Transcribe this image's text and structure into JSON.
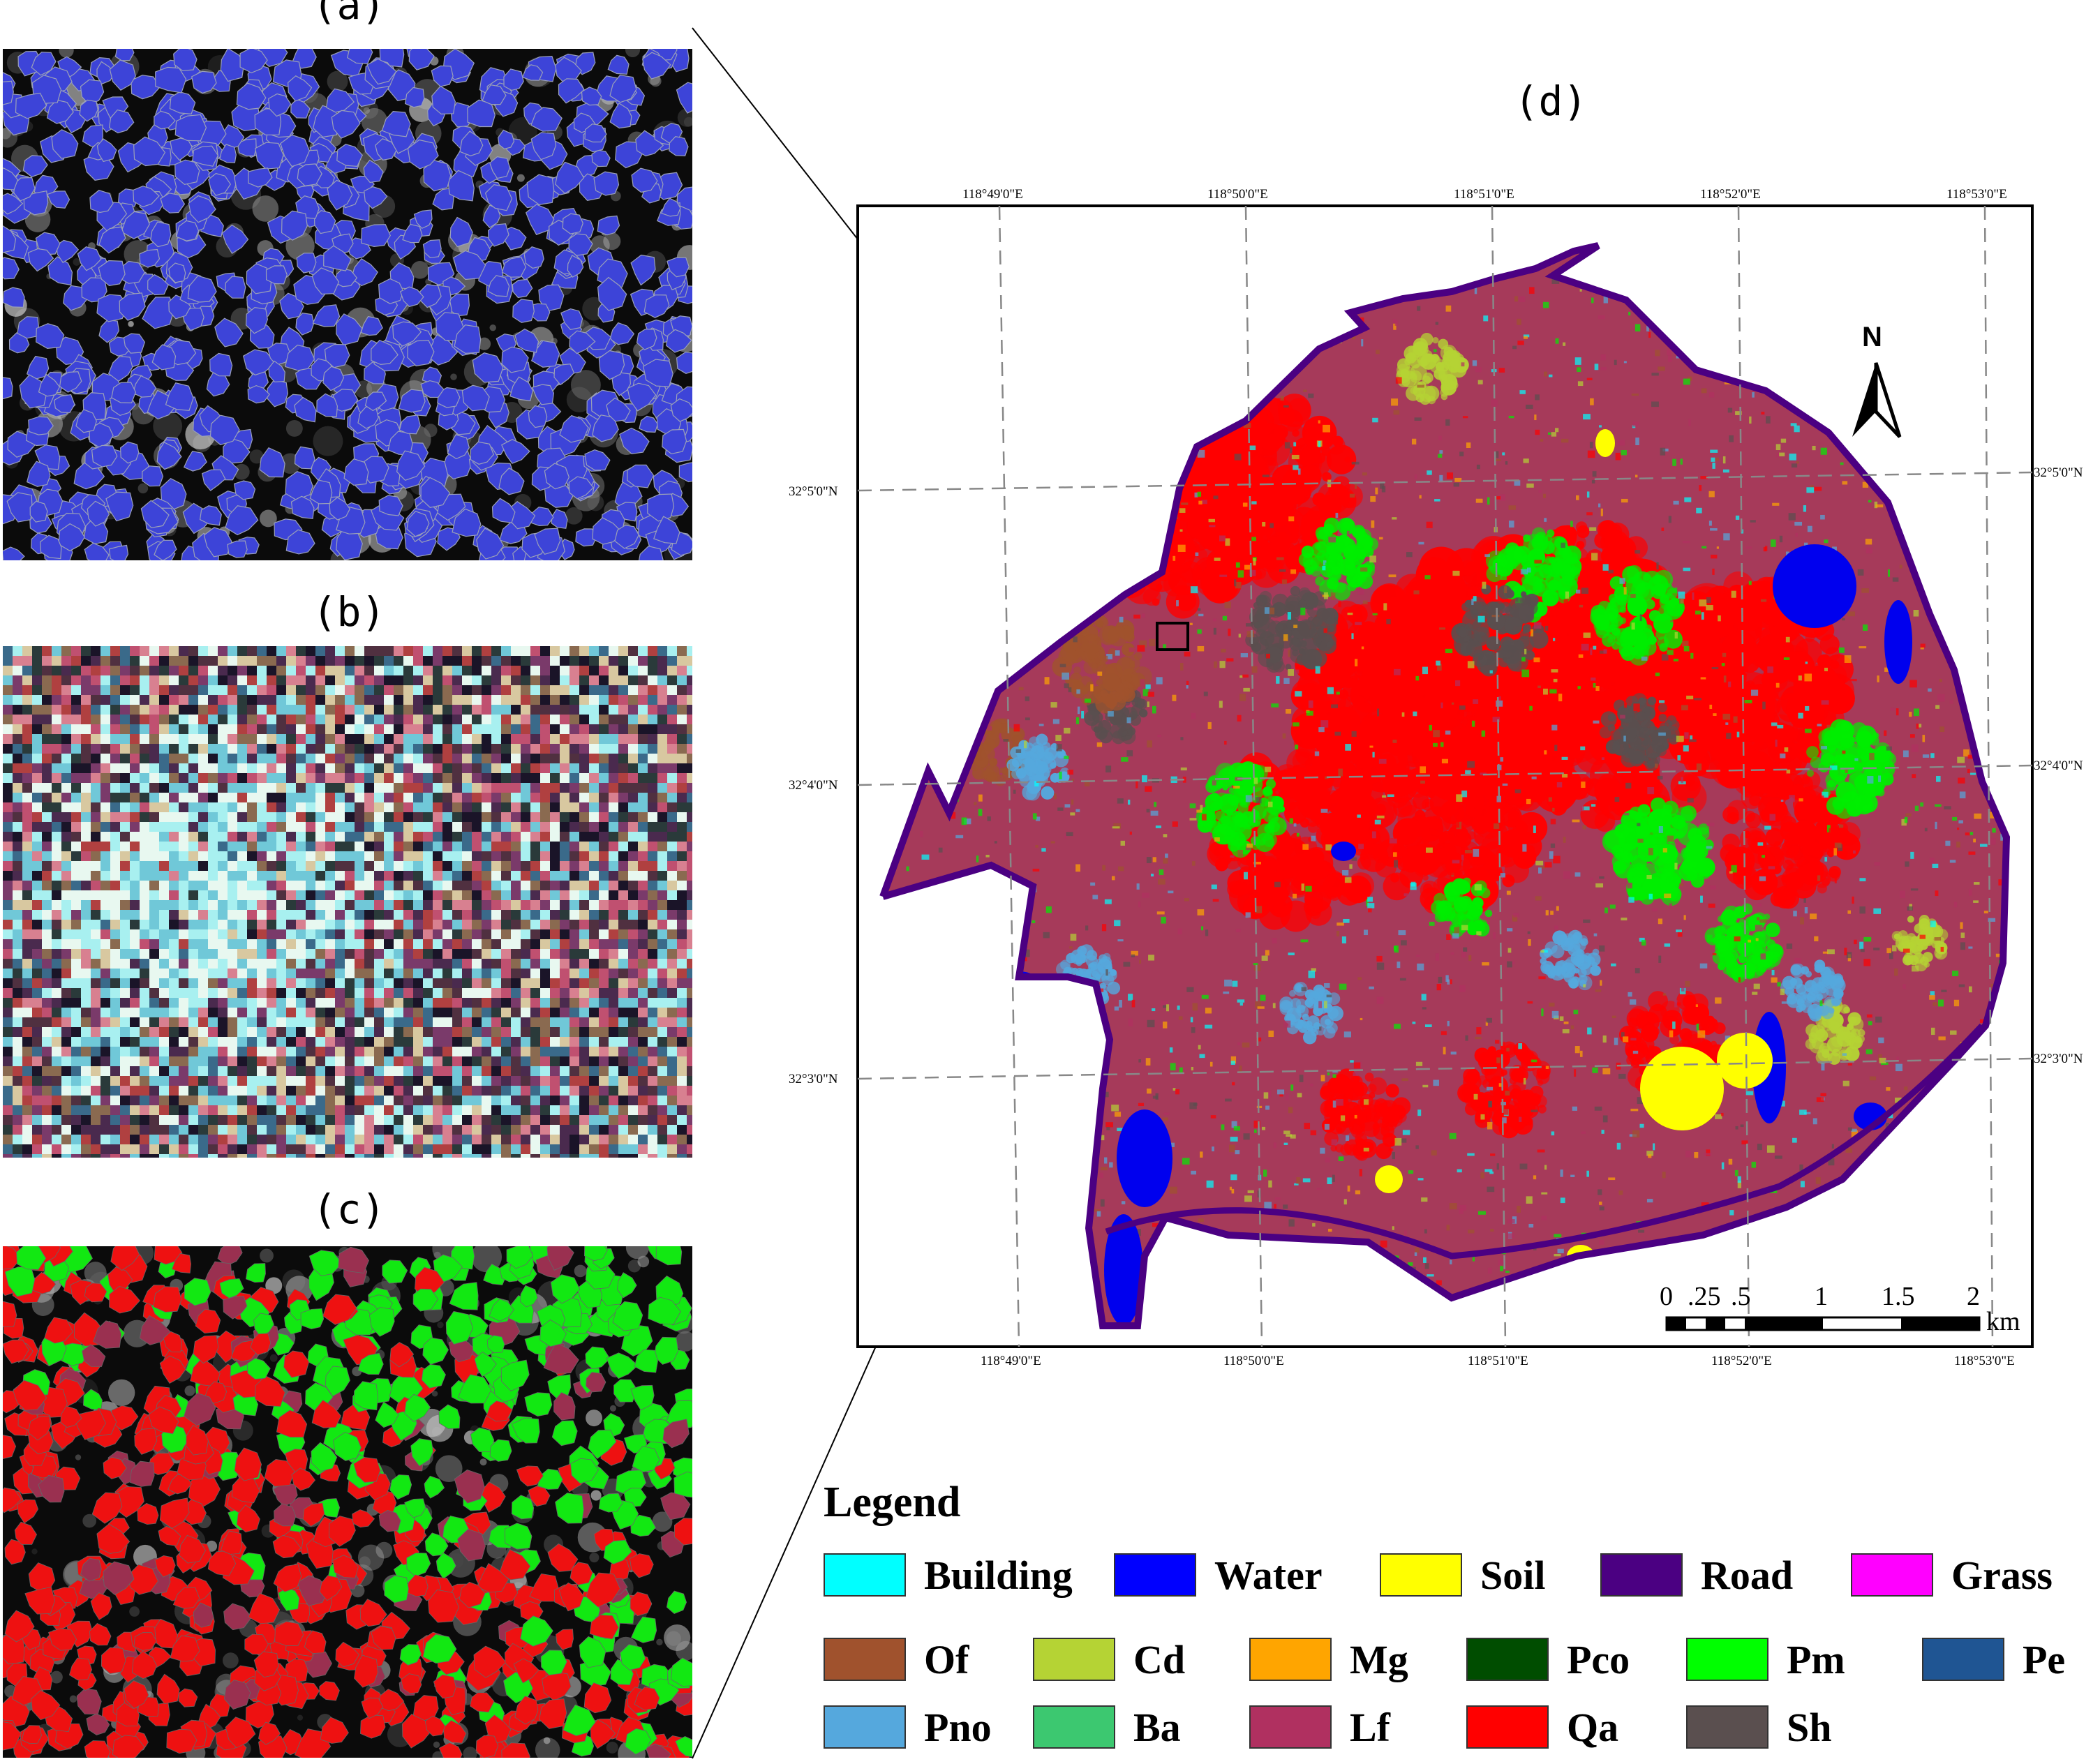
{
  "panels": {
    "a": {
      "label": "(a)"
    },
    "b": {
      "label": "(b)"
    },
    "c": {
      "label": "(c)"
    },
    "d": {
      "label": "(d)"
    }
  },
  "map": {
    "top_lon_labels": [
      "118°49'0\"E",
      "118°50'0\"E",
      "118°51'0\"E",
      "118°52'0\"E",
      "118°53'0\"E"
    ],
    "bottom_lon_labels": [
      "118°49'0\"E",
      "118°50'0\"E",
      "118°51'0\"E",
      "118°52'0\"E",
      "118°53'0\"E"
    ],
    "left_lat_labels": [
      "32°5'0\"N",
      "32°4'0\"N",
      "32°3'0\"N"
    ],
    "right_lat_labels": [
      "32°5'0\"N",
      "32°4'0\"N",
      "32°3'0\"N"
    ],
    "north_label": "N",
    "scale": {
      "ticks": [
        "0",
        ".25",
        ".5",
        "1",
        "1.5",
        "2"
      ],
      "unit": "km"
    }
  },
  "legend": {
    "title": "Legend",
    "items": [
      {
        "label": "Building",
        "color": "#00ffff"
      },
      {
        "label": "Water",
        "color": "#0000ff"
      },
      {
        "label": "Soil",
        "color": "#ffff00"
      },
      {
        "label": "Road",
        "color": "#4b0082"
      },
      {
        "label": "Grass",
        "color": "#ff00ff"
      },
      {
        "label": "Of",
        "color": "#a0522d"
      },
      {
        "label": "Cd",
        "color": "#b5d334"
      },
      {
        "label": "Mg",
        "color": "#ffa500"
      },
      {
        "label": "Pco",
        "color": "#004d00"
      },
      {
        "label": "Pm",
        "color": "#00ff00"
      },
      {
        "label": "Pe",
        "color": "#1f5593"
      },
      {
        "label": "Pno",
        "color": "#55a8dd"
      },
      {
        "label": "Ba",
        "color": "#3cc870"
      },
      {
        "label": "Lf",
        "color": "#b03060"
      },
      {
        "label": "Qa",
        "color": "#ff0000"
      },
      {
        "label": "Sh",
        "color": "#5a4f4f"
      }
    ]
  }
}
